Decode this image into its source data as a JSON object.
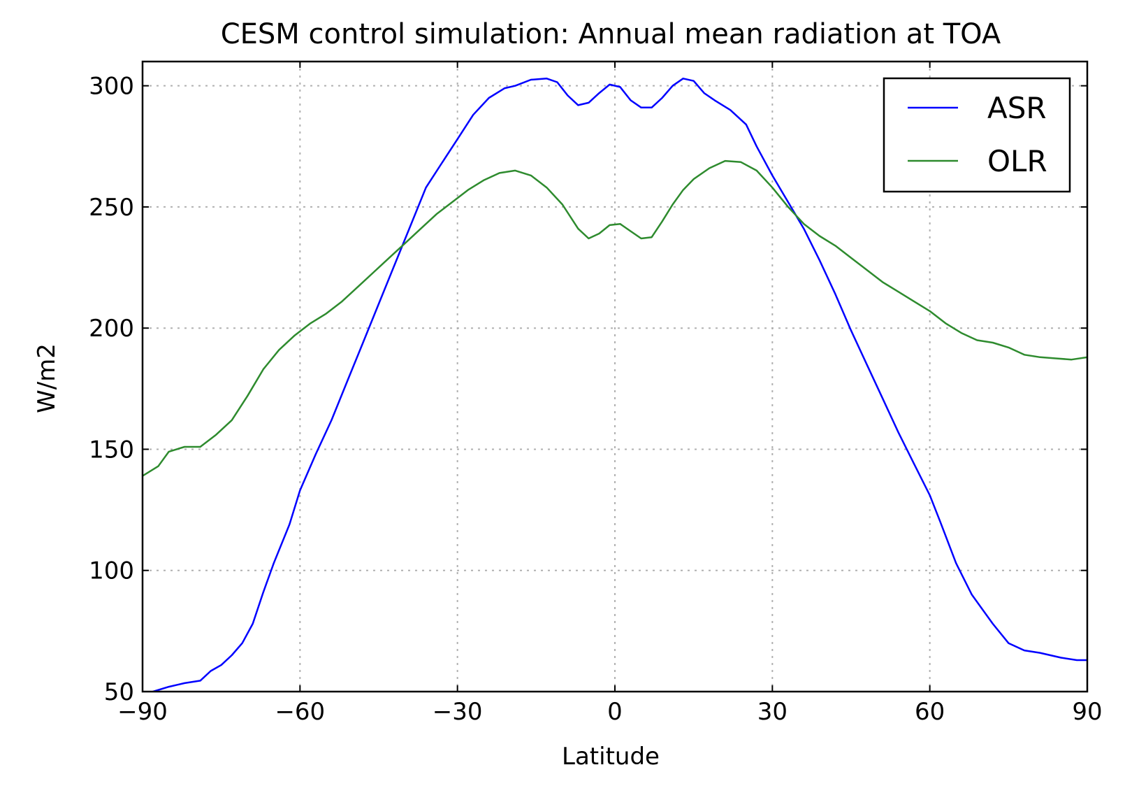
{
  "chart_data": {
    "type": "line",
    "title": "CESM control simulation: Annual mean radiation at TOA",
    "xlabel": "Latitude",
    "ylabel": "W/m2",
    "xlim": [
      -90,
      90
    ],
    "ylim": [
      50,
      310
    ],
    "xticks": [
      -90,
      -60,
      -30,
      0,
      30,
      60,
      90
    ],
    "xtick_labels": [
      "−90",
      "−60",
      "−30",
      "0",
      "30",
      "60",
      "90"
    ],
    "yticks": [
      50,
      100,
      150,
      200,
      250,
      300
    ],
    "ytick_labels": [
      "50",
      "100",
      "150",
      "200",
      "250",
      "300"
    ],
    "grid": true,
    "legend_position": "top-right",
    "series": [
      {
        "name": "ASR",
        "color": "#0000ff",
        "x": [
          -88,
          -85,
          -82,
          -79,
          -77,
          -75,
          -73,
          -71,
          -69,
          -67,
          -65,
          -62,
          -60,
          -57,
          -54,
          -51,
          -48,
          -45,
          -42,
          -39,
          -36,
          -33,
          -30,
          -27,
          -24,
          -21,
          -19,
          -16,
          -13,
          -11,
          -9,
          -7,
          -5,
          -3,
          -1,
          1,
          3,
          5,
          7,
          9,
          11,
          13,
          15,
          17,
          19,
          22,
          25,
          27,
          30,
          33,
          36,
          39,
          42,
          45,
          48,
          51,
          54,
          57,
          60,
          62,
          65,
          68,
          72,
          75,
          78,
          81,
          85,
          88,
          90
        ],
        "y": [
          50,
          52,
          53.5,
          54.5,
          58.5,
          61,
          65,
          70,
          78,
          91,
          103,
          119,
          133,
          148,
          162,
          178,
          194,
          210,
          226,
          242,
          258,
          268,
          278,
          288,
          295,
          299,
          300,
          302.5,
          303,
          301.5,
          296,
          292,
          293,
          297,
          300.5,
          299.5,
          294,
          291,
          291,
          295,
          300,
          303,
          302,
          297,
          294,
          290,
          284,
          275,
          263,
          252,
          241,
          228,
          214,
          199,
          185,
          171,
          157,
          144,
          131,
          120,
          103,
          90,
          78,
          70,
          67,
          66,
          64,
          63,
          63
        ]
      },
      {
        "name": "OLR",
        "color": "#2e8b2e",
        "x": [
          -90,
          -87,
          -85,
          -82,
          -79,
          -76,
          -73,
          -70,
          -67,
          -64,
          -61,
          -58,
          -55,
          -52,
          -49,
          -46,
          -43,
          -40,
          -37,
          -34,
          -31,
          -28,
          -25,
          -22,
          -19,
          -16,
          -13,
          -10,
          -7,
          -5,
          -3,
          -1,
          1,
          3,
          5,
          7,
          9,
          11,
          13,
          15,
          18,
          21,
          24,
          27,
          30,
          33,
          36,
          39,
          42,
          45,
          48,
          51,
          54,
          57,
          60,
          63,
          66,
          69,
          72,
          75,
          78,
          81,
          84,
          87,
          90
        ],
        "y": [
          139,
          143,
          149,
          151,
          151,
          156,
          162,
          172,
          183,
          191,
          197,
          202,
          206,
          211,
          217,
          223,
          229,
          235,
          241,
          247,
          252,
          257,
          261,
          264,
          265,
          263,
          258,
          251,
          241,
          237,
          239,
          242.5,
          243,
          240,
          237,
          237.5,
          244,
          251,
          257,
          261.5,
          266,
          269,
          268.5,
          265,
          258,
          250,
          243,
          238,
          234,
          229,
          224,
          219,
          215,
          211,
          207,
          202,
          198,
          195,
          194,
          192,
          189,
          188,
          187.5,
          187,
          188
        ]
      }
    ]
  }
}
